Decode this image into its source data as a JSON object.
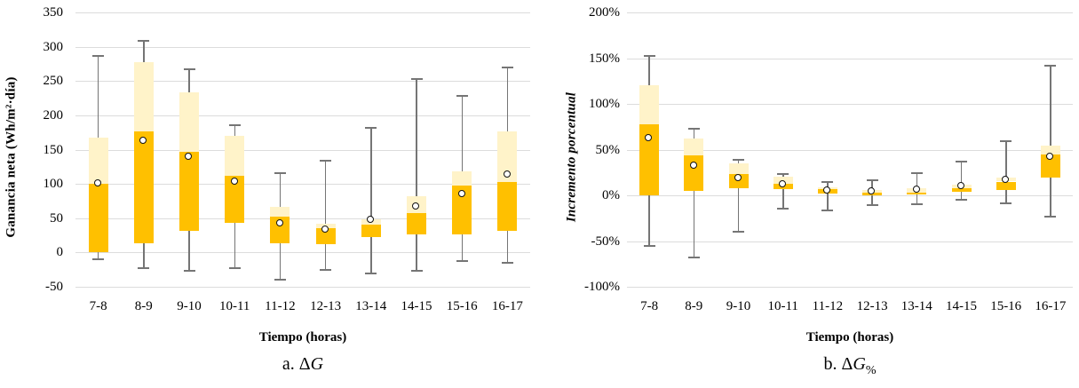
{
  "colors": {
    "box_lower_orange": "#FFC000",
    "box_upper_cream": "#FFF3C9",
    "whisker_gray": "#757575",
    "gridline_gray": "#DCDCDC",
    "mean_fill": "#FFFFFF",
    "mean_stroke": "#111111",
    "text": "#000000",
    "background": "#FFFFFF"
  },
  "mean_marker_icon": "open-circle",
  "chart_data": [
    {
      "type": "boxplot",
      "caption": {
        "prefix": "a. ",
        "delta": "Δ",
        "variable": "G",
        "subscript": ""
      },
      "xlabel": "Tiempo (horas)",
      "ylabel": "Ganancia neta (Wh/m²·día)",
      "ylim": [
        -50,
        350
      ],
      "grid": "horizontal",
      "legend": "none",
      "yticks": [
        350,
        300,
        250,
        200,
        150,
        100,
        50,
        0,
        -50
      ],
      "ytick_labels": [
        "350",
        "300",
        "250",
        "200",
        "150",
        "100",
        "50",
        "0",
        "-50"
      ],
      "categories": [
        "7-8",
        "8-9",
        "9-10",
        "10-11",
        "11-12",
        "12-13",
        "13-14",
        "14-15",
        "15-16",
        "16-17"
      ],
      "series": [
        {
          "category": "7-8",
          "whisker_low": -10,
          "q1": 0,
          "median": 100,
          "q3": 167,
          "whisker_high": 286,
          "mean": 100
        },
        {
          "category": "8-9",
          "whisker_low": -23,
          "q1": 13,
          "median": 177,
          "q3": 277,
          "whisker_high": 308,
          "mean": 163
        },
        {
          "category": "9-10",
          "whisker_low": -26,
          "q1": 31,
          "median": 147,
          "q3": 234,
          "whisker_high": 267,
          "mean": 140
        },
        {
          "category": "10-11",
          "whisker_low": -23,
          "q1": 43,
          "median": 112,
          "q3": 170,
          "whisker_high": 186,
          "mean": 103
        },
        {
          "category": "11-12",
          "whisker_low": -40,
          "q1": 13,
          "median": 52,
          "q3": 67,
          "whisker_high": 116,
          "mean": 42
        },
        {
          "category": "12-13",
          "whisker_low": -25,
          "q1": 12,
          "median": 35,
          "q3": 42,
          "whisker_high": 134,
          "mean": 33
        },
        {
          "category": "13-14",
          "whisker_low": -31,
          "q1": 23,
          "median": 41,
          "q3": 49,
          "whisker_high": 182,
          "mean": 47
        },
        {
          "category": "14-15",
          "whisker_low": -27,
          "q1": 26,
          "median": 57,
          "q3": 82,
          "whisker_high": 253,
          "mean": 67
        },
        {
          "category": "15-16",
          "whisker_low": -13,
          "q1": 26,
          "median": 97,
          "q3": 118,
          "whisker_high": 228,
          "mean": 85
        },
        {
          "category": "16-17",
          "whisker_low": -15,
          "q1": 32,
          "median": 103,
          "q3": 176,
          "whisker_high": 270,
          "mean": 113
        }
      ]
    },
    {
      "type": "boxplot",
      "caption": {
        "prefix": "b. ",
        "delta": "Δ",
        "variable": "G",
        "subscript": "%"
      },
      "xlabel": "Tiempo (horas)",
      "ylabel": "Incremento porcentual",
      "ylim": [
        -100,
        200
      ],
      "grid": "horizontal",
      "legend": "none",
      "unit": "%",
      "yticks": [
        200,
        150,
        100,
        50,
        0,
        -50,
        -100
      ],
      "ytick_labels": [
        "200%",
        "150%",
        "100%",
        "50%",
        "0%",
        "-50%",
        "-100%"
      ],
      "categories": [
        "7-8",
        "8-9",
        "9-10",
        "10-11",
        "11-12",
        "12-13",
        "13-14",
        "14-15",
        "15-16",
        "16-17"
      ],
      "series": [
        {
          "category": "7-8",
          "whisker_low": -55,
          "q1": 0,
          "median": 78,
          "q3": 120,
          "whisker_high": 152,
          "mean": 62
        },
        {
          "category": "8-9",
          "whisker_low": -68,
          "q1": 5,
          "median": 44,
          "q3": 62,
          "whisker_high": 73,
          "mean": 32
        },
        {
          "category": "9-10",
          "whisker_low": -40,
          "q1": 8,
          "median": 23,
          "q3": 35,
          "whisker_high": 39,
          "mean": 19
        },
        {
          "category": "10-11",
          "whisker_low": -15,
          "q1": 7,
          "median": 13,
          "q3": 20,
          "whisker_high": 23,
          "mean": 12
        },
        {
          "category": "11-12",
          "whisker_low": -16,
          "q1": 2,
          "median": 7,
          "q3": 9,
          "whisker_high": 15,
          "mean": 5
        },
        {
          "category": "12-13",
          "whisker_low": -11,
          "q1": 0,
          "median": 3,
          "q3": 6,
          "whisker_high": 17,
          "mean": 4
        },
        {
          "category": "13-14",
          "whisker_low": -10,
          "q1": 1,
          "median": 3,
          "q3": 8,
          "whisker_high": 24,
          "mean": 6
        },
        {
          "category": "14-15",
          "whisker_low": -5,
          "q1": 4,
          "median": 8,
          "q3": 12,
          "whisker_high": 37,
          "mean": 10
        },
        {
          "category": "15-16",
          "whisker_low": -9,
          "q1": 6,
          "median": 15,
          "q3": 19,
          "whisker_high": 59,
          "mean": 17
        },
        {
          "category": "16-17",
          "whisker_low": -23,
          "q1": 19,
          "median": 45,
          "q3": 54,
          "whisker_high": 142,
          "mean": 42
        }
      ]
    }
  ]
}
